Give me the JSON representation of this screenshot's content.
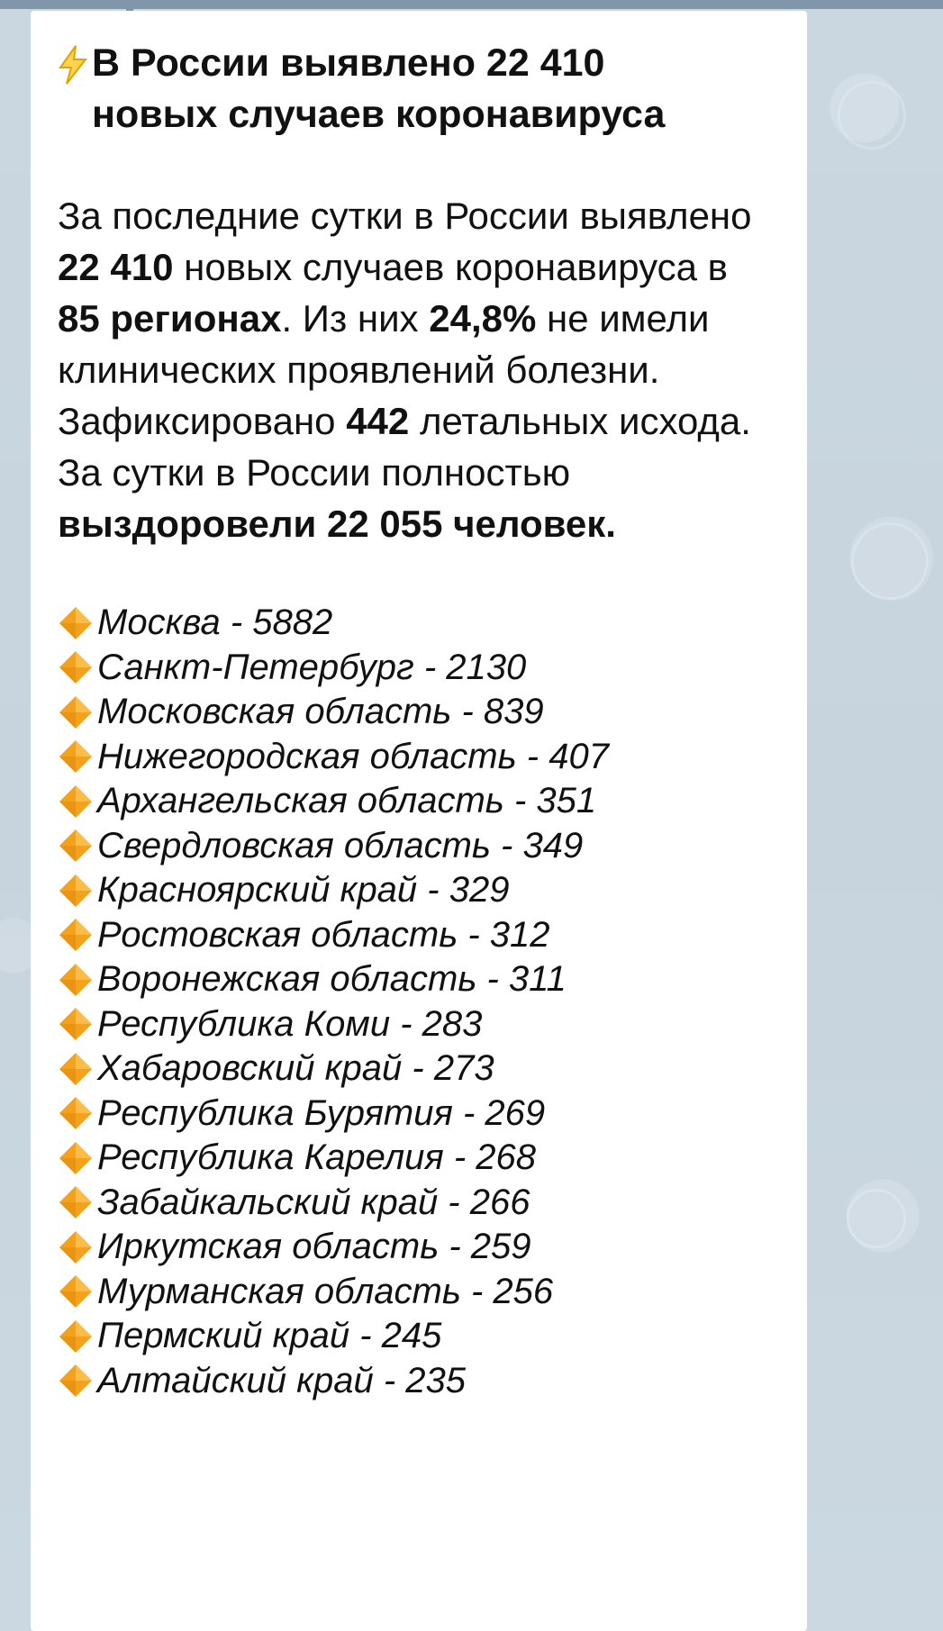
{
  "colors": {
    "background": "#c9d6e0",
    "bubble": "#ffffff",
    "text": "#111111",
    "diamond_main": "#f4a21c",
    "diamond_highlight": "#ffc85a",
    "bolt_fill": "#ffd34d",
    "bolt_stroke": "#e0a400"
  },
  "message": {
    "icon": "lightning-icon",
    "headline": "В России выявлено 22 410 новых случаев коронавируса",
    "body": {
      "t1": "За последние сутки в России выявлено ",
      "b1": "22 410",
      "t2": " новых случаев коронавируса в ",
      "b2": "85 регионах",
      "t3": ". Из них ",
      "b3": "24,8%",
      "t4": " не имели клинических проявлений болезни. Зафиксировано ",
      "b4": "442",
      "t5": " летальных исхода. За сутки в России полностью ",
      "b5": "выздоровели 22 055 человек."
    },
    "region_icon": "orange-diamond-icon",
    "regions": [
      "Москва - 5882",
      "Санкт-Петербург - 2130",
      "Московская область - 839",
      "Нижегородская область - 407",
      "Архангельская область - 351",
      "Свердловская область - 349",
      "Красноярский край - 329",
      "Ростовская область - 312",
      "Воронежская область - 311",
      "Республика Коми - 283",
      "Хабаровский край - 273",
      "Республика Бурятия - 269",
      "Республика Карелия - 268",
      "Забайкальский край - 266",
      "Иркутская область - 259",
      "Мурманская область - 256",
      "Пермский край - 245",
      "Алтайский край - 235"
    ]
  }
}
